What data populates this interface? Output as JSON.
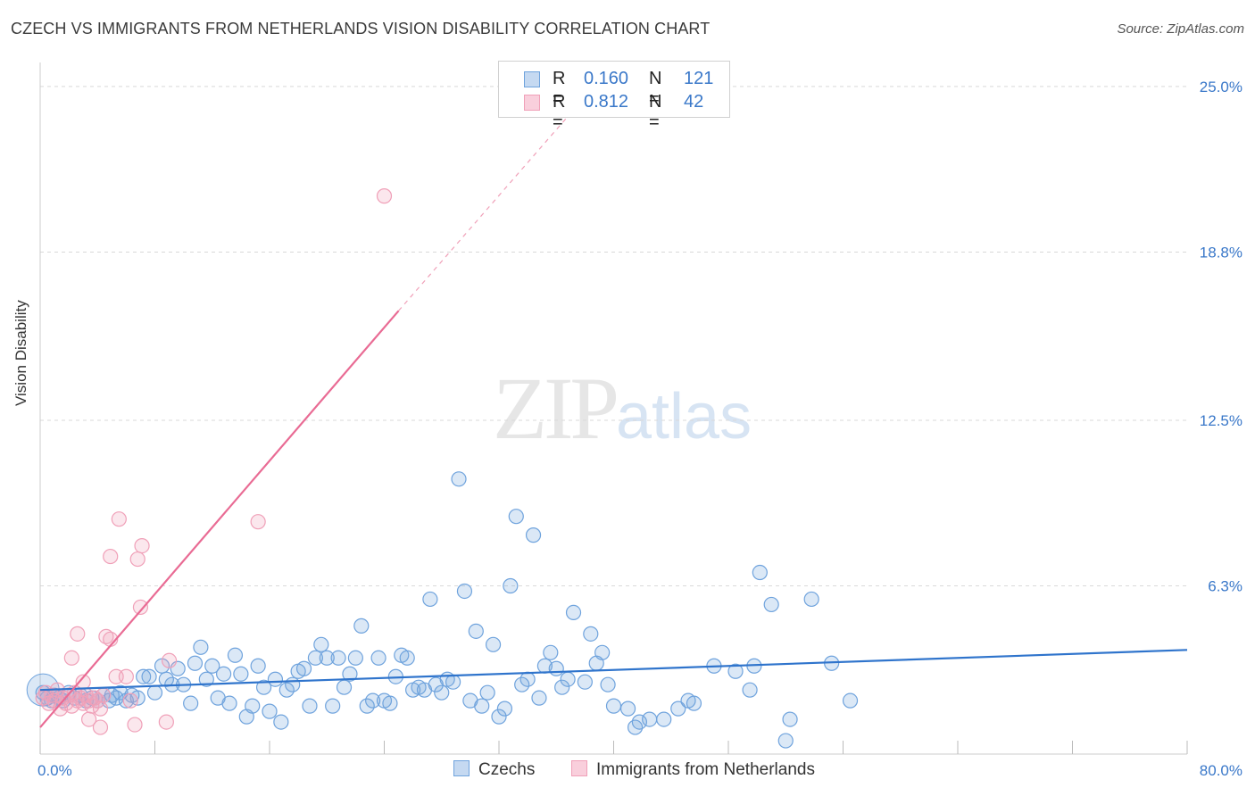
{
  "title": "CZECH VS IMMIGRANTS FROM NETHERLANDS VISION DISABILITY CORRELATION CHART",
  "source": "Source: ZipAtlas.com",
  "watermark": {
    "zip": "ZIP",
    "atlas": "atlas"
  },
  "legend": {
    "rows": [
      {
        "r_label": "R =",
        "r_value": "0.160",
        "n_label": "N =",
        "n_value": "121",
        "color": "#6fa3dd"
      },
      {
        "r_label": "R =",
        "r_value": "0.812",
        "n_label": "N =",
        "n_value": "42",
        "color": "#f0a0b8"
      }
    ]
  },
  "bottom_legend": {
    "czechs": "Czechs",
    "netherlands": "Immigrants from Netherlands"
  },
  "chart_data": {
    "type": "scatter",
    "title": "CZECH VS IMMIGRANTS FROM NETHERLANDS VISION DISABILITY CORRELATION CHART",
    "xlabel": "",
    "ylabel": "Vision Disability",
    "xlim": [
      0,
      80
    ],
    "ylim": [
      0,
      25.9
    ],
    "x_tick_labels": [
      "0.0%",
      "80.0%"
    ],
    "y_ticks": [
      6.3,
      12.5,
      18.8,
      25.0
    ],
    "y_tick_labels": [
      "6.3%",
      "12.5%",
      "18.8%",
      "25.0%"
    ],
    "grid": true,
    "series": [
      {
        "name": "Czechs",
        "color": "#6fa3dd",
        "trend": {
          "x": [
            0,
            80
          ],
          "y": [
            2.4,
            3.9
          ]
        },
        "points": [
          [
            0.2,
            2.3
          ],
          [
            0.5,
            2.1
          ],
          [
            0.8,
            2.0
          ],
          [
            1.0,
            2.2
          ],
          [
            1.3,
            2.1
          ],
          [
            1.6,
            2.0
          ],
          [
            2.0,
            2.3
          ],
          [
            2.4,
            2.1
          ],
          [
            2.8,
            2.2
          ],
          [
            3.2,
            2.0
          ],
          [
            3.6,
            2.1
          ],
          [
            4.0,
            2.0
          ],
          [
            4.4,
            2.2
          ],
          [
            4.8,
            2.0
          ],
          [
            5.0,
            2.2
          ],
          [
            5.3,
            2.1
          ],
          [
            5.6,
            2.3
          ],
          [
            6.0,
            2.0
          ],
          [
            6.4,
            2.2
          ],
          [
            6.8,
            2.1
          ],
          [
            7.2,
            2.9
          ],
          [
            7.6,
            2.9
          ],
          [
            8.0,
            2.3
          ],
          [
            8.5,
            3.3
          ],
          [
            8.8,
            2.8
          ],
          [
            9.2,
            2.6
          ],
          [
            9.6,
            3.2
          ],
          [
            10.0,
            2.6
          ],
          [
            10.5,
            1.9
          ],
          [
            10.8,
            3.4
          ],
          [
            11.2,
            4.0
          ],
          [
            11.6,
            2.8
          ],
          [
            12.0,
            3.3
          ],
          [
            12.4,
            2.1
          ],
          [
            12.8,
            3.0
          ],
          [
            13.2,
            1.9
          ],
          [
            13.6,
            3.7
          ],
          [
            14.0,
            3.0
          ],
          [
            14.4,
            1.4
          ],
          [
            14.8,
            1.8
          ],
          [
            15.2,
            3.3
          ],
          [
            15.6,
            2.5
          ],
          [
            16.0,
            1.6
          ],
          [
            16.4,
            2.8
          ],
          [
            16.8,
            1.2
          ],
          [
            17.2,
            2.4
          ],
          [
            17.6,
            2.6
          ],
          [
            18.0,
            3.1
          ],
          [
            18.4,
            3.2
          ],
          [
            18.8,
            1.8
          ],
          [
            19.2,
            3.6
          ],
          [
            19.6,
            4.1
          ],
          [
            20.0,
            3.6
          ],
          [
            20.4,
            1.8
          ],
          [
            20.8,
            3.6
          ],
          [
            21.2,
            2.5
          ],
          [
            21.6,
            3.0
          ],
          [
            22.0,
            3.6
          ],
          [
            22.4,
            4.8
          ],
          [
            22.8,
            1.8
          ],
          [
            23.2,
            2.0
          ],
          [
            23.6,
            3.6
          ],
          [
            24.0,
            2.0
          ],
          [
            24.4,
            1.9
          ],
          [
            24.8,
            2.9
          ],
          [
            25.2,
            3.7
          ],
          [
            25.6,
            3.6
          ],
          [
            26.0,
            2.4
          ],
          [
            26.4,
            2.5
          ],
          [
            26.8,
            2.4
          ],
          [
            27.2,
            5.8
          ],
          [
            27.6,
            2.6
          ],
          [
            28.0,
            2.3
          ],
          [
            28.4,
            2.8
          ],
          [
            28.8,
            2.7
          ],
          [
            29.2,
            10.3
          ],
          [
            29.6,
            6.1
          ],
          [
            30.0,
            2.0
          ],
          [
            30.4,
            4.6
          ],
          [
            30.8,
            1.8
          ],
          [
            31.2,
            2.3
          ],
          [
            31.6,
            4.1
          ],
          [
            32.0,
            1.4
          ],
          [
            32.4,
            1.7
          ],
          [
            32.8,
            6.3
          ],
          [
            33.2,
            8.9
          ],
          [
            33.6,
            2.6
          ],
          [
            34.0,
            2.8
          ],
          [
            34.4,
            8.2
          ],
          [
            34.8,
            2.1
          ],
          [
            35.2,
            3.3
          ],
          [
            35.6,
            3.8
          ],
          [
            36.0,
            3.2
          ],
          [
            36.4,
            2.5
          ],
          [
            36.8,
            2.8
          ],
          [
            37.2,
            5.3
          ],
          [
            38.0,
            2.7
          ],
          [
            38.4,
            4.5
          ],
          [
            38.8,
            3.4
          ],
          [
            39.2,
            3.8
          ],
          [
            39.6,
            2.6
          ],
          [
            40.0,
            1.8
          ],
          [
            41.0,
            1.7
          ],
          [
            41.5,
            1.0
          ],
          [
            41.8,
            1.2
          ],
          [
            42.5,
            1.3
          ],
          [
            43.5,
            1.3
          ],
          [
            44.5,
            1.7
          ],
          [
            45.2,
            2.0
          ],
          [
            45.6,
            1.9
          ],
          [
            47.0,
            3.3
          ],
          [
            48.5,
            3.1
          ],
          [
            49.5,
            2.4
          ],
          [
            49.8,
            3.3
          ],
          [
            50.2,
            6.8
          ],
          [
            51.0,
            5.6
          ],
          [
            52.0,
            0.5
          ],
          [
            52.3,
            1.3
          ],
          [
            53.8,
            5.8
          ],
          [
            55.2,
            3.4
          ],
          [
            56.5,
            2.0
          ]
        ]
      },
      {
        "name": "Immigrants from Netherlands",
        "color": "#f0a0b8",
        "trend": {
          "x": [
            0,
            25
          ],
          "y": [
            1.0,
            16.6
          ]
        },
        "trend_extension": {
          "x": [
            25,
            37
          ],
          "y": [
            16.6,
            24.0
          ]
        },
        "points": [
          [
            0.2,
            2.1
          ],
          [
            0.4,
            2.3
          ],
          [
            0.6,
            1.9
          ],
          [
            0.8,
            2.2
          ],
          [
            1.0,
            2.0
          ],
          [
            1.2,
            2.4
          ],
          [
            1.4,
            1.7
          ],
          [
            1.6,
            2.1
          ],
          [
            1.8,
            1.9
          ],
          [
            2.0,
            2.2
          ],
          [
            2.2,
            1.8
          ],
          [
            2.4,
            2.3
          ],
          [
            2.6,
            2.0
          ],
          [
            2.8,
            2.1
          ],
          [
            3.0,
            1.9
          ],
          [
            3.2,
            2.2
          ],
          [
            3.4,
            2.0
          ],
          [
            3.6,
            1.8
          ],
          [
            3.8,
            2.1
          ],
          [
            4.0,
            2.0
          ],
          [
            4.2,
            1.7
          ],
          [
            4.4,
            2.2
          ],
          [
            2.2,
            3.6
          ],
          [
            2.6,
            4.5
          ],
          [
            3.0,
            2.7
          ],
          [
            3.4,
            1.3
          ],
          [
            4.2,
            1.0
          ],
          [
            4.6,
            4.4
          ],
          [
            4.9,
            4.3
          ],
          [
            4.9,
            7.4
          ],
          [
            5.3,
            2.9
          ],
          [
            5.5,
            8.8
          ],
          [
            6.0,
            2.9
          ],
          [
            6.3,
            2.0
          ],
          [
            6.6,
            1.1
          ],
          [
            6.8,
            7.3
          ],
          [
            7.0,
            5.5
          ],
          [
            7.1,
            7.8
          ],
          [
            8.8,
            1.2
          ],
          [
            9.0,
            3.5
          ],
          [
            15.2,
            8.7
          ],
          [
            24.0,
            20.9
          ]
        ]
      }
    ]
  }
}
